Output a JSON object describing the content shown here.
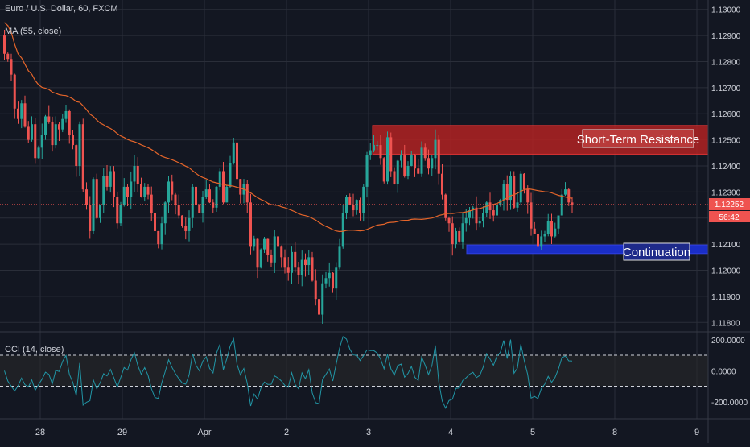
{
  "chart_data": {
    "type": "candlestick",
    "symbol_label": "Euro / U.S. Dollar, 60, FXCM",
    "indicator_label": "MA (55, close)",
    "colors": {
      "background": "#131722",
      "grid": "#2a2e39",
      "up_candle": "#26a69a",
      "down_candle": "#ef5350",
      "ma_line": "#e5652a",
      "cci_line": "#2196a6",
      "resistance_zone": "#b22222",
      "support_zone": "#1a2fd1",
      "axis_text": "#d1d4dc",
      "price_badge": "#ef5350"
    },
    "price_axis": {
      "ticks": [
        "1.13000",
        "1.12900",
        "1.12800",
        "1.12700",
        "1.12600",
        "1.12500",
        "1.12400",
        "1.12300",
        "1.12200",
        "1.12100",
        "1.12000",
        "1.11900",
        "1.11800"
      ],
      "range": [
        1.1177,
        1.1303
      ]
    },
    "x_axis": {
      "labels": [
        "28",
        "29",
        "Apr",
        "2",
        "3",
        "4",
        "5",
        "8",
        "9"
      ],
      "day_start_bar": [
        0,
        24,
        48,
        72,
        96,
        120,
        144,
        168,
        192
      ]
    },
    "current_price": "1.12252",
    "countdown": "56:42",
    "zones": [
      {
        "name": "Short-Term Resistance",
        "label": "Short-Term Resistance",
        "from_bar": 110,
        "to_bar": 210,
        "low": 1.12445,
        "high": 1.12555
      },
      {
        "name": "Continuation",
        "label": "Continuation",
        "from_bar": 138,
        "to_bar": 210,
        "low": 1.12064,
        "high": 1.12097
      }
    ],
    "candles_close": [
      1.1283,
      1.1281,
      1.1275,
      1.1262,
      1.1258,
      1.1264,
      1.1255,
      1.125,
      1.1256,
      1.1243,
      1.1247,
      1.1252,
      1.1259,
      1.1257,
      1.1248,
      1.1256,
      1.1254,
      1.1258,
      1.1261,
      1.1252,
      1.1248,
      1.124,
      1.1256,
      1.1231,
      1.1225,
      1.1215,
      1.1235,
      1.122,
      1.1225,
      1.1236,
      1.1232,
      1.1238,
      1.1228,
      1.1218,
      1.1225,
      1.1232,
      1.1228,
      1.1234,
      1.124,
      1.1233,
      1.1228,
      1.1232,
      1.1229,
      1.1222,
      1.1215,
      1.121,
      1.1218,
      1.1226,
      1.1234,
      1.1229,
      1.1225,
      1.1221,
      1.1217,
      1.1215,
      1.122,
      1.1232,
      1.1225,
      1.1222,
      1.1228,
      1.1231,
      1.1226,
      1.1224,
      1.1232,
      1.1238,
      1.1226,
      1.1232,
      1.1241,
      1.1249,
      1.1235,
      1.1229,
      1.1233,
      1.1226,
      1.1209,
      1.1212,
      1.1201,
      1.1208,
      1.1212,
      1.1206,
      1.1203,
      1.1213,
      1.1209,
      1.1205,
      1.1201,
      1.1199,
      1.1207,
      1.1201,
      1.1198,
      1.1204,
      1.1202,
      1.1205,
      1.1196,
      1.1189,
      1.1183,
      1.1195,
      1.1197,
      1.1199,
      1.1193,
      1.1201,
      1.1209,
      1.1222,
      1.1228,
      1.1225,
      1.1223,
      1.1227,
      1.1222,
      1.1232,
      1.1244,
      1.1246,
      1.1248,
      1.1248,
      1.1243,
      1.1234,
      1.1251,
      1.1238,
      1.1233,
      1.1242,
      1.1244,
      1.1236,
      1.124,
      1.1244,
      1.1239,
      1.1237,
      1.1247,
      1.1243,
      1.1239,
      1.1243,
      1.125,
      1.1237,
      1.1229,
      1.122,
      1.1218,
      1.121,
      1.1215,
      1.1211,
      1.1218,
      1.122,
      1.1223,
      1.1224,
      1.1218,
      1.1219,
      1.1222,
      1.1226,
      1.1223,
      1.1221,
      1.1225,
      1.1227,
      1.1233,
      1.1227,
      1.1236,
      1.1224,
      1.1226,
      1.1237,
      1.1231,
      1.1226,
      1.1216,
      1.1214,
      1.1209,
      1.1213,
      1.1214,
      1.1219,
      1.1213,
      1.1216,
      1.1221,
      1.1229,
      1.1231,
      1.1226,
      1.1225
    ],
    "cci_panel": {
      "label": "CCI (14, close)",
      "ticks": [
        "200.0000",
        "0.0000",
        "-200.0000"
      ],
      "band": [
        -100,
        100
      ],
      "range": [
        -300,
        230
      ]
    }
  }
}
